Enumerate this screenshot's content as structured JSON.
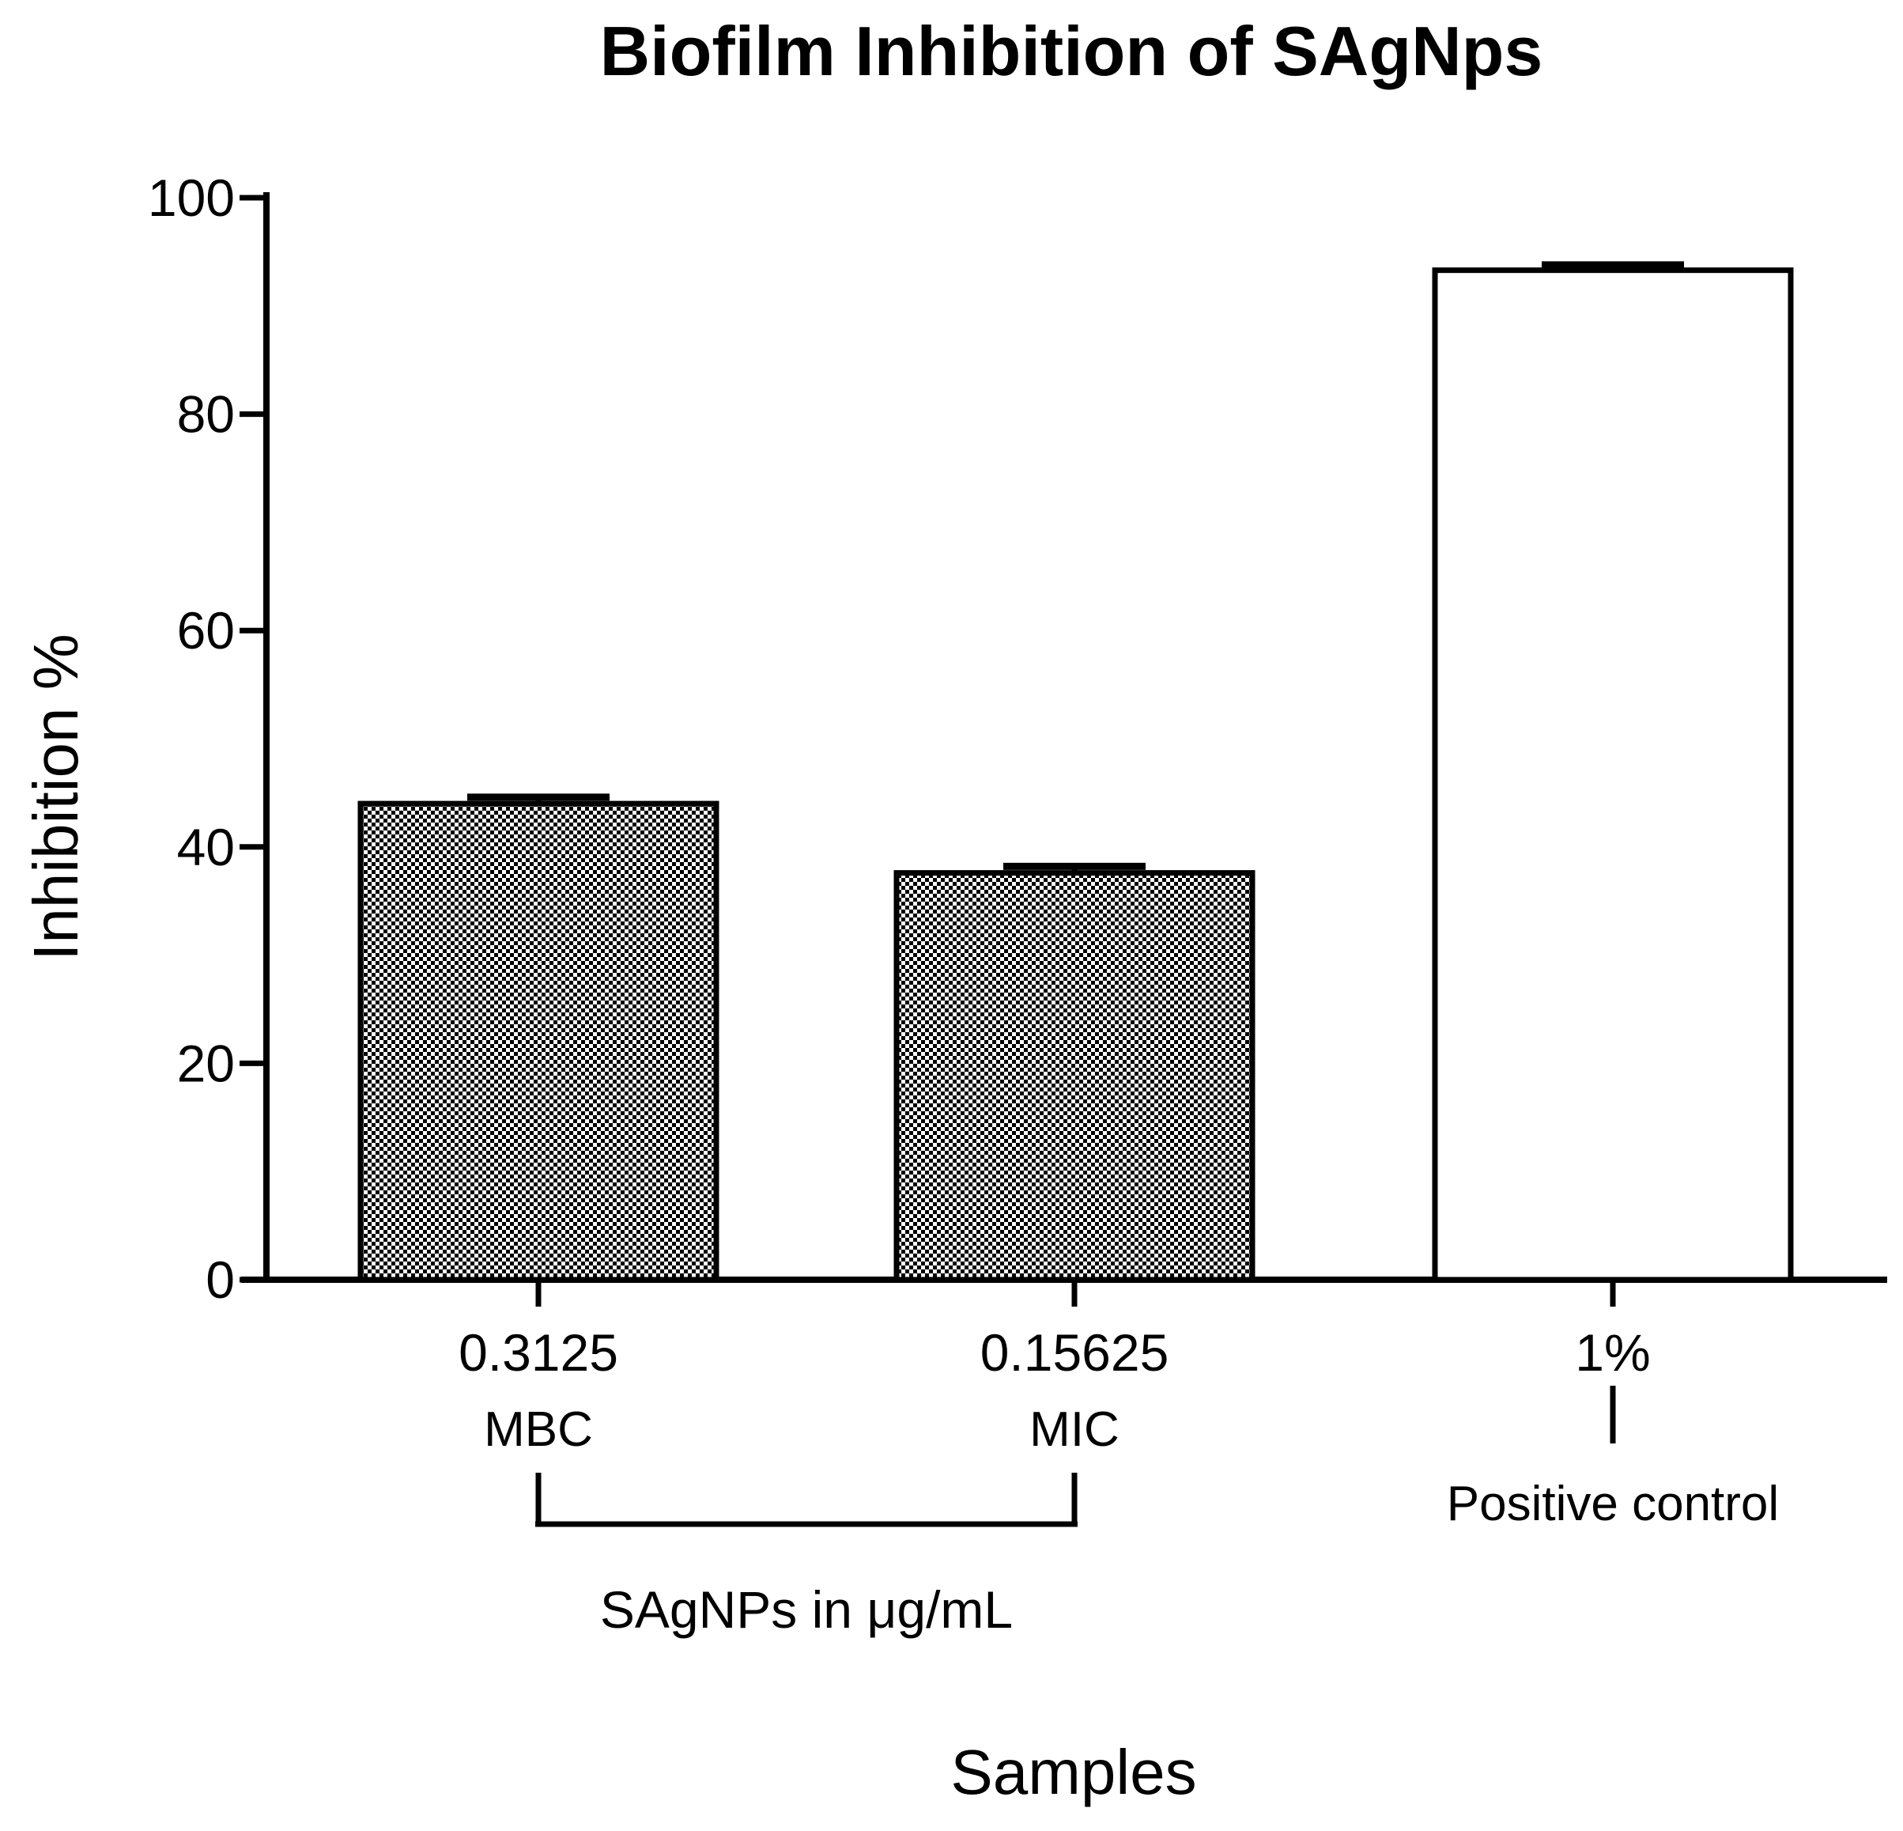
{
  "chart_data": {
    "type": "bar",
    "title": "Biofilm Inhibition of SAgNps",
    "xlabel": "Samples",
    "ylabel": "Inhibition %",
    "ylim": [
      0,
      100
    ],
    "yticks": [
      "0",
      "20",
      "40",
      "60",
      "80",
      "100"
    ],
    "grid": false,
    "categories": [
      "0.3125",
      "0.15625",
      "1%"
    ],
    "sublabels": [
      "MBC",
      "MIC",
      "Positive control"
    ],
    "values": [
      44.0,
      37.6,
      93.3
    ],
    "errors": [
      0.6,
      0.6,
      0.5
    ],
    "fills": [
      "checkered",
      "checkered",
      "white"
    ],
    "group_label": "SAgNPs in μg/mL"
  },
  "colors": {
    "ink": "#000000",
    "background": "#ffffff",
    "hatch": "#000000"
  }
}
